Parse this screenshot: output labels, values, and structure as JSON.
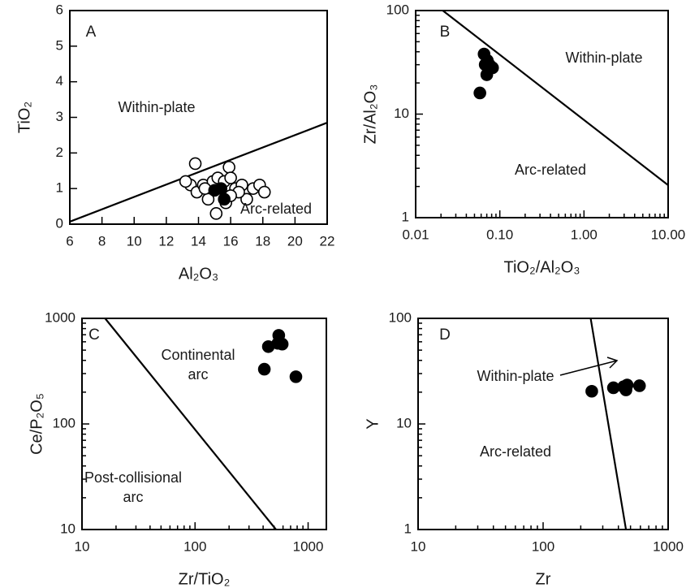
{
  "chart_data": [
    {
      "type": "scatter",
      "panel": "A",
      "xlabel": "Al₂O₃",
      "ylabel": "TiO₂",
      "xlim": [
        6,
        22
      ],
      "ylim": [
        0,
        6
      ],
      "xticks": [
        6,
        8,
        10,
        12,
        14,
        16,
        18,
        20,
        22
      ],
      "yticks": [
        0,
        1,
        2,
        3,
        4,
        5,
        6
      ],
      "xlog": false,
      "ylog": false,
      "annotations": [
        "Within-plate",
        "Arc-related"
      ],
      "boundary": {
        "x": [
          6,
          22
        ],
        "y": [
          0.07,
          2.85
        ]
      },
      "series": [
        {
          "color": "#000000",
          "fill": "#ffffff",
          "x": [
            13.8,
            13.5,
            13.9,
            14.3,
            14.6,
            14.9,
            15.2,
            15.6,
            15.9,
            16.0,
            16.3,
            16.7,
            17.0,
            17.4,
            17.8,
            18.1,
            15.1,
            14.4,
            15.7,
            16.5,
            13.2,
            16.0
          ],
          "values": [
            1.7,
            1.1,
            0.9,
            1.1,
            0.7,
            1.2,
            1.3,
            1.2,
            1.6,
            1.3,
            1.0,
            1.1,
            0.7,
            1.0,
            1.1,
            0.9,
            0.3,
            1.0,
            0.6,
            0.9,
            1.2,
            0.8
          ]
        },
        {
          "color": "#000000",
          "fill": "#000000",
          "x": [
            15.0,
            15.6,
            15.4
          ],
          "values": [
            0.95,
            0.7,
            1.0
          ]
        }
      ]
    },
    {
      "type": "scatter",
      "panel": "B",
      "xlabel": "TiO₂/Al₂O₃",
      "ylabel": "Zr/Al₂O₃",
      "xlim": [
        0.01,
        10
      ],
      "ylim": [
        1,
        100
      ],
      "xticks": [
        0.01,
        {
          "value": 0.1,
          "label": "0.10"
        },
        {
          "value": 1,
          "label": "1.00"
        },
        {
          "value": 10,
          "label": "10.00"
        }
      ],
      "yticks": [
        1,
        10,
        100
      ],
      "xlog": true,
      "ylog": true,
      "annotations": [
        "Within-plate",
        "Arc-related"
      ],
      "boundary": {
        "x": [
          0.021,
          10
        ],
        "y": [
          100,
          2.06
        ]
      },
      "series": [
        {
          "color": "#000000",
          "fill": "#000000",
          "x": [
            0.065,
            0.067,
            0.075,
            0.082,
            0.07,
            0.058,
            0.071
          ],
          "values": [
            38,
            30,
            30,
            28,
            24,
            16,
            33
          ]
        }
      ]
    },
    {
      "type": "scatter",
      "panel": "C",
      "xlabel": "Zr/TiO₂",
      "ylabel": "Ce/P₂O₅",
      "xlim": [
        10,
        1450
      ],
      "ylim": [
        10,
        1000
      ],
      "xticks": [
        10,
        100,
        1000
      ],
      "yticks": [
        10,
        100,
        1000
      ],
      "xlog": true,
      "ylog": true,
      "annotations": [
        "Continental",
        "arc",
        "Post-collisional",
        "arc"
      ],
      "boundary": {
        "x": [
          16,
          520
        ],
        "y": [
          1000,
          10
        ]
      },
      "series": [
        {
          "color": "#000000",
          "fill": "#000000",
          "x": [
            550,
            445,
            540,
            590,
            410,
            780
          ],
          "values": [
            690,
            540,
            580,
            570,
            330,
            280
          ]
        }
      ]
    },
    {
      "type": "scatter",
      "panel": "D",
      "xlabel": "Zr",
      "ylabel": "Y",
      "xlim": [
        10,
        1000
      ],
      "ylim": [
        1,
        100
      ],
      "xticks": [
        10,
        100,
        1000
      ],
      "yticks": [
        1,
        10,
        100
      ],
      "xlog": true,
      "ylog": true,
      "annotations": [
        "Within-plate",
        "Arc-related"
      ],
      "boundary": {
        "x": [
          240,
          460
        ],
        "y": [
          100,
          1
        ]
      },
      "series": [
        {
          "color": "#000000",
          "fill": "#000000",
          "x": [
            245,
            365,
            440,
            460,
            470,
            590
          ],
          "values": [
            20.4,
            22,
            22.5,
            21,
            23.4,
            23
          ]
        }
      ]
    }
  ]
}
